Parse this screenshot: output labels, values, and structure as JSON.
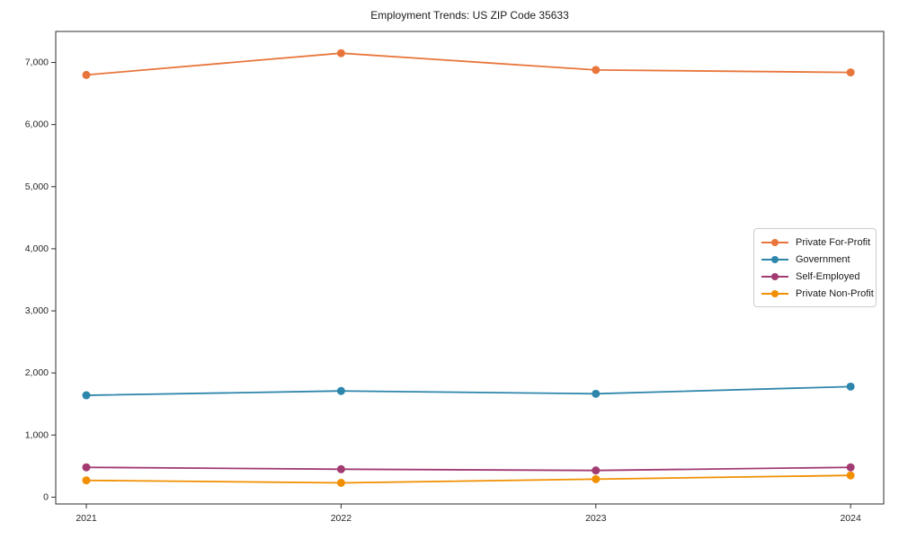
{
  "chart_data": {
    "type": "line",
    "title": "Employment Trends: US ZIP Code 35633",
    "x": [
      2021,
      2022,
      2023,
      2024
    ],
    "categories": [
      "2021",
      "2022",
      "2023",
      "2024"
    ],
    "series": [
      {
        "name": "Private For-Profit",
        "color": "#E8763C",
        "values": [
          6800,
          7150,
          6880,
          6840
        ]
      },
      {
        "name": "Government",
        "color": "#2E86AB",
        "values": [
          1640,
          1710,
          1665,
          1780
        ]
      },
      {
        "name": "Self-Employed",
        "color": "#A23B72",
        "values": [
          480,
          450,
          430,
          480
        ]
      },
      {
        "name": "Private Non-Profit",
        "color": "#F18F01",
        "values": [
          270,
          230,
          290,
          350
        ]
      }
    ],
    "yticks": [
      0,
      1000,
      2000,
      3000,
      4000,
      5000,
      6000,
      7000
    ],
    "ytick_labels": [
      "0",
      "1,000",
      "2,000",
      "3,000",
      "4,000",
      "5,000",
      "6,000",
      "7,000"
    ],
    "xlabel": "",
    "ylabel": "",
    "xlim": [
      2020.88,
      2024.13
    ],
    "ylim": [
      -110,
      7500
    ],
    "grid": false,
    "legend_position": "center-right",
    "marker": "circle",
    "axis_color": "#2e2e2e"
  }
}
